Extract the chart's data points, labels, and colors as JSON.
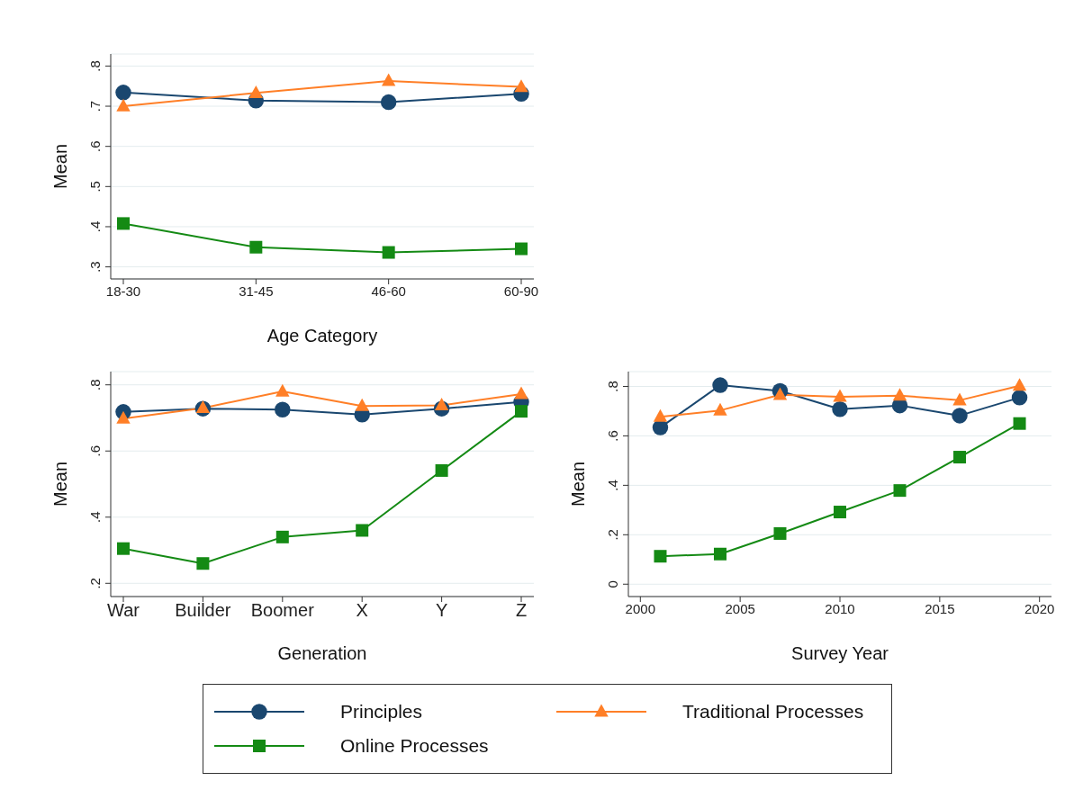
{
  "chart_data": [
    {
      "type": "line",
      "xlabel": "Age Category",
      "ylabel": "Mean",
      "categories": [
        "18-30",
        "31-45",
        "46-60",
        "60-90"
      ],
      "ylim": [
        0.27,
        0.83
      ],
      "yticks": [
        {
          "value": 0.3,
          "label": ".3"
        },
        {
          "value": 0.4,
          "label": ".4"
        },
        {
          "value": 0.5,
          "label": ".5"
        },
        {
          "value": 0.6,
          "label": ".6"
        },
        {
          "value": 0.7,
          "label": ".7"
        },
        {
          "value": 0.8,
          "label": ".8"
        }
      ],
      "grid": "y",
      "legend": "bottom",
      "series": [
        {
          "name": "Principles",
          "color": "#1a476f",
          "marker": "circle",
          "values": [
            0.734,
            0.714,
            0.71,
            0.731
          ]
        },
        {
          "name": "Traditional Processes",
          "color": "#ff7f27",
          "marker": "triangle",
          "values": [
            0.7,
            0.733,
            0.763,
            0.748
          ]
        },
        {
          "name": "Online Processes",
          "color": "#148a14",
          "marker": "square",
          "values": [
            0.408,
            0.349,
            0.336,
            0.345
          ]
        }
      ]
    },
    {
      "type": "line",
      "xlabel": "Generation",
      "ylabel": "Mean",
      "categories": [
        "War",
        "Builder",
        "Boomer",
        "X",
        "Y",
        "Z"
      ],
      "ylim": [
        0.16,
        0.84
      ],
      "yticks": [
        {
          "value": 0.2,
          "label": ".2"
        },
        {
          "value": 0.4,
          "label": ".4"
        },
        {
          "value": 0.6,
          "label": ".6"
        },
        {
          "value": 0.8,
          "label": ".8"
        }
      ],
      "grid": "y",
      "series": [
        {
          "color": "#1a476f",
          "marker": "circle",
          "values": [
            0.718,
            0.728,
            0.725,
            0.71,
            0.728,
            0.748
          ]
        },
        {
          "color": "#ff7f27",
          "marker": "triangle",
          "values": [
            0.698,
            0.73,
            0.78,
            0.736,
            0.738,
            0.772
          ]
        },
        {
          "color": "#148a14",
          "marker": "square",
          "values": [
            0.305,
            0.26,
            0.34,
            0.36,
            0.541,
            0.72
          ]
        }
      ]
    },
    {
      "type": "line",
      "xlabel": "Survey Year",
      "ylabel": "Mean",
      "x": [
        2001,
        2004,
        2007,
        2010,
        2013,
        2016,
        2019
      ],
      "xlim": [
        1999.4,
        2020.6
      ],
      "xticks": [
        2000,
        2005,
        2010,
        2015,
        2020
      ],
      "ylim": [
        -0.05,
        0.86
      ],
      "yticks": [
        0,
        {
          "value": 0.2,
          "label": ".2"
        },
        {
          "value": 0.4,
          "label": ".4"
        },
        {
          "value": 0.6,
          "label": ".6"
        },
        {
          "value": 0.8,
          "label": ".8"
        }
      ],
      "grid": "y",
      "series": [
        {
          "color": "#1a476f",
          "marker": "circle",
          "values": [
            0.634,
            0.805,
            0.782,
            0.708,
            0.723,
            0.682,
            0.755
          ]
        },
        {
          "color": "#ff7f27",
          "marker": "triangle",
          "values": [
            0.677,
            0.703,
            0.766,
            0.758,
            0.763,
            0.744,
            0.803
          ]
        },
        {
          "color": "#148a14",
          "marker": "square",
          "values": [
            0.113,
            0.122,
            0.205,
            0.292,
            0.379,
            0.514,
            0.65
          ]
        }
      ]
    }
  ]
}
